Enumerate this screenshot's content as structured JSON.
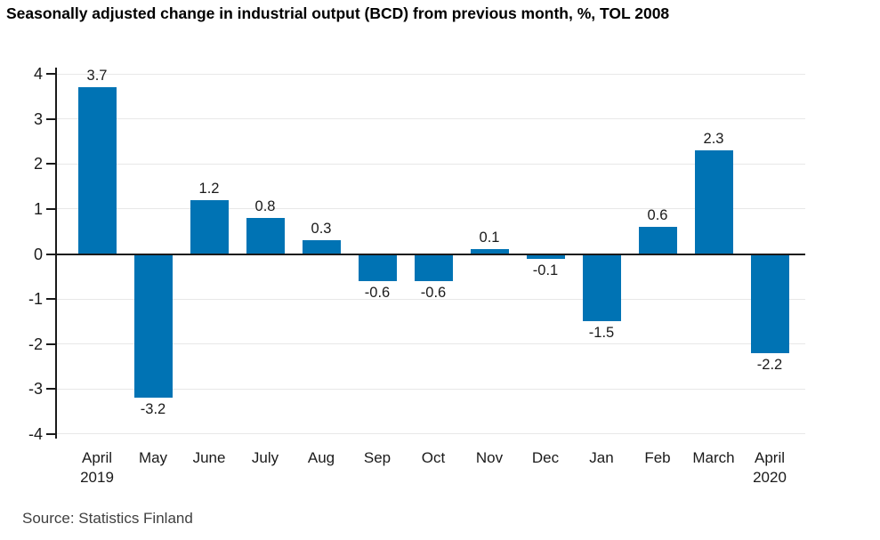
{
  "title": "Seasonally adjusted change in industrial output (BCD) from previous month, %, TOL 2008",
  "source": "Source: Statistics Finland",
  "chart_data": {
    "type": "bar",
    "title": "Seasonally adjusted change in industrial output (BCD) from previous month, %, TOL 2008",
    "categories": [
      "April",
      "May",
      "June",
      "July",
      "Aug",
      "Sep",
      "Oct",
      "Nov",
      "Dec",
      "Jan",
      "Feb",
      "March",
      "April"
    ],
    "category_sublabels": [
      "2019",
      "",
      "",
      "",
      "",
      "",
      "",
      "",
      "",
      "",
      "",
      "",
      "2020"
    ],
    "values": [
      3.7,
      -3.2,
      1.2,
      0.8,
      0.3,
      -0.6,
      -0.6,
      0.1,
      -0.1,
      -1.5,
      0.6,
      2.3,
      -2.2
    ],
    "value_labels": [
      "3.7",
      "-3.2",
      "1.2",
      "0.8",
      "0.3",
      "-0.6",
      "-0.6",
      "0.1",
      "-0.1",
      "-1.5",
      "0.6",
      "2.3",
      "-2.2"
    ],
    "xlabel": "",
    "ylabel": "",
    "ylim": [
      -4,
      4
    ],
    "yticks": [
      4,
      3,
      2,
      1,
      0,
      -1,
      -2,
      -3,
      -4
    ],
    "grid": "horizontal",
    "legend": "none",
    "colors": {
      "bar": "#0073b4",
      "grid": "#e8e8e8",
      "axis": "#1a1a1a",
      "zero_line": "#1a1a1a",
      "label_text": "#1a1a1a",
      "title_text": "#000000",
      "source_text": "#404040"
    },
    "source": "Source: Statistics Finland"
  }
}
